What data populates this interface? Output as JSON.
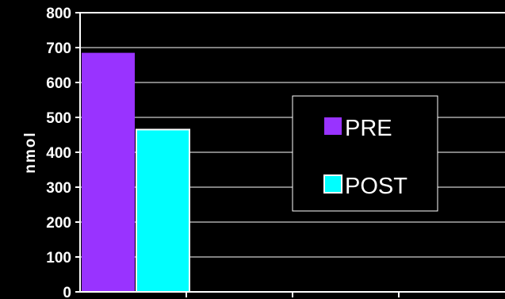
{
  "chart_data": {
    "type": "bar",
    "title": "",
    "xlabel": "",
    "ylabel": "nmol",
    "ylim": [
      0,
      800
    ],
    "yticks": [
      0,
      100,
      200,
      300,
      400,
      500,
      600,
      700,
      800
    ],
    "y_tick_labels": [
      "0",
      "100",
      "200",
      "300",
      "400",
      "500",
      "600",
      "700",
      "800"
    ],
    "categories": [
      "",
      "",
      "",
      ""
    ],
    "series": [
      {
        "name": "PRE",
        "color": "#9933ff",
        "values": [
          685,
          null,
          null,
          null
        ]
      },
      {
        "name": "POST",
        "color": "#00ffff",
        "values": [
          465,
          null,
          null,
          null
        ]
      }
    ],
    "legend": {
      "placement": "center-right",
      "entries": [
        "PRE",
        "POST"
      ]
    },
    "grid": true,
    "colors": {
      "background": "#000000",
      "axis": "#ffffff",
      "grid": "#ffffff",
      "text": "#ffffff"
    }
  }
}
